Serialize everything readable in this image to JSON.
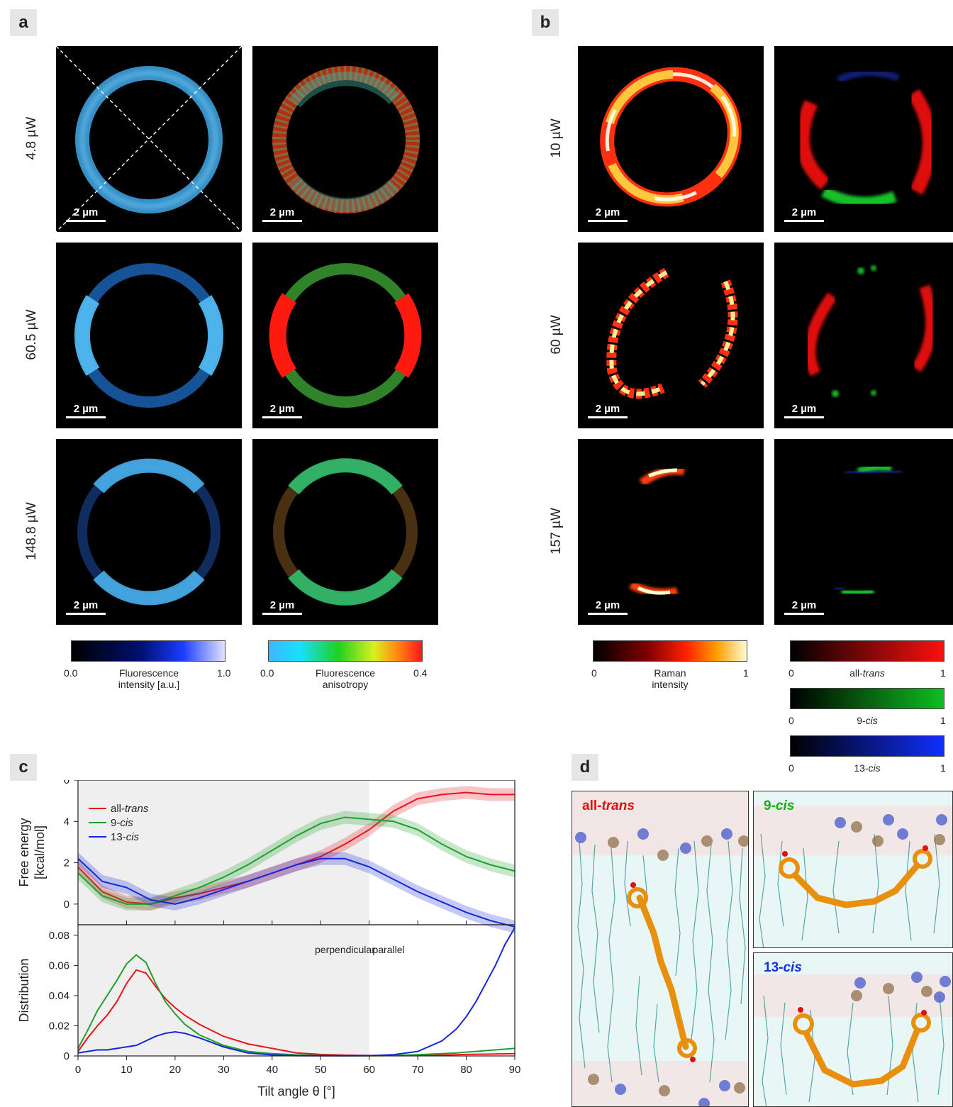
{
  "panels": {
    "a": "a",
    "b": "b",
    "c": "c",
    "d": "d"
  },
  "scale_bar": "2 µm",
  "panel_a": {
    "rows": [
      "4.8 µW",
      "60.5 µW",
      "148.8 µW"
    ],
    "colorbar_intensity": {
      "min": "0.0",
      "max": "1.0",
      "caption_line1": "Fluorescence",
      "caption_line2": "intensity [a.u.]"
    },
    "colorbar_anisotropy": {
      "min": "0.0",
      "max": "0.4",
      "caption_line1": "Fluorescence",
      "caption_line2": "anisotropy"
    }
  },
  "panel_b": {
    "rows": [
      "10 µW",
      "60 µW",
      "157 µW"
    ],
    "colorbar_raman": {
      "min": "0",
      "max": "1",
      "caption_line1": "Raman",
      "caption_line2": "intensity"
    },
    "colorbar_isomers": [
      {
        "min": "0",
        "max": "1",
        "prefix": "all-",
        "italic": "trans",
        "color": "#e01010"
      },
      {
        "min": "0",
        "max": "1",
        "prefix": "9-",
        "italic": "cis",
        "color": "#10b010"
      },
      {
        "min": "0",
        "max": "1",
        "prefix": "13-",
        "italic": "cis",
        "color": "#1030e0"
      }
    ]
  },
  "panel_d": {
    "labels": [
      {
        "prefix": "all-",
        "italic": "trans",
        "color": "#e01010"
      },
      {
        "prefix": "9-",
        "italic": "cis",
        "color": "#10b010"
      },
      {
        "prefix": "13-",
        "italic": "cis",
        "color": "#1030e0"
      }
    ]
  },
  "chart_data": [
    {
      "type": "line",
      "ylabel": "Free energy [kcal/mol]",
      "ylabel_line1": "Free energy",
      "ylabel_line2": "[kcal/mol]",
      "xlim": [
        0,
        90
      ],
      "ylim": [
        -1,
        6
      ],
      "yticks": [
        "6",
        "4",
        "2",
        "0"
      ],
      "shaded_region": [
        0,
        60
      ],
      "legend_placement": "top-left",
      "x": [
        0,
        5,
        10,
        15,
        20,
        25,
        30,
        35,
        40,
        45,
        50,
        55,
        60,
        65,
        70,
        75,
        80,
        85,
        90
      ],
      "series": [
        {
          "name": "all-trans",
          "prefix": "all-",
          "italic": "trans",
          "color": "#e8141b",
          "values": [
            1.8,
            0.6,
            0.1,
            0.0,
            0.3,
            0.5,
            0.8,
            1.1,
            1.5,
            1.9,
            2.3,
            2.9,
            3.6,
            4.5,
            5.1,
            5.3,
            5.4,
            5.3,
            5.3
          ]
        },
        {
          "name": "9-cis",
          "prefix": "9-",
          "italic": "cis",
          "color": "#1fa02a",
          "values": [
            1.5,
            0.4,
            0.0,
            0.0,
            0.4,
            0.8,
            1.3,
            1.9,
            2.6,
            3.3,
            3.9,
            4.2,
            4.1,
            4.0,
            3.6,
            2.9,
            2.3,
            1.9,
            1.6
          ]
        },
        {
          "name": "13-cis",
          "prefix": "13-",
          "italic": "cis",
          "color": "#1428d8",
          "values": [
            2.2,
            1.1,
            0.8,
            0.2,
            0.0,
            0.3,
            0.7,
            1.1,
            1.5,
            1.9,
            2.2,
            2.2,
            1.8,
            1.2,
            0.6,
            0.1,
            -0.4,
            -0.8,
            -1.1
          ]
        }
      ]
    },
    {
      "type": "line",
      "xlabel": "Tilt angle θ [°]",
      "ylabel": "Distribution",
      "xlim": [
        0,
        90
      ],
      "ylim": [
        0,
        0.087
      ],
      "xticks": [
        "0",
        "10",
        "20",
        "30",
        "40",
        "50",
        "60",
        "70",
        "80",
        "90"
      ],
      "yticks": [
        "0.08",
        "0.06",
        "0.04",
        "0.02",
        "0"
      ],
      "annotations": [
        "perpendicular",
        "parallel"
      ],
      "shaded_region": [
        0,
        60
      ],
      "x": [
        0,
        2,
        4,
        6,
        8,
        10,
        12,
        14,
        16,
        18,
        20,
        22,
        25,
        30,
        35,
        40,
        45,
        50,
        55,
        60,
        65,
        70,
        75,
        78,
        80,
        82,
        84,
        86,
        88,
        90
      ],
      "series": [
        {
          "name": "all-trans",
          "color": "#e8141b",
          "values": [
            0.003,
            0.012,
            0.02,
            0.027,
            0.036,
            0.048,
            0.057,
            0.055,
            0.046,
            0.038,
            0.032,
            0.027,
            0.021,
            0.013,
            0.008,
            0.005,
            0.002,
            0.001,
            0.0005,
            0.0003,
            0.0003,
            0.0004,
            0.0006,
            0.0008,
            0.001,
            0.0011,
            0.0012,
            0.0013,
            0.0014,
            0.0015
          ]
        },
        {
          "name": "9-cis",
          "color": "#1fa02a",
          "values": [
            0.005,
            0.017,
            0.03,
            0.04,
            0.05,
            0.061,
            0.067,
            0.062,
            0.048,
            0.036,
            0.028,
            0.021,
            0.014,
            0.007,
            0.003,
            0.0015,
            0.0007,
            0.0003,
            0.0001,
            0.0001,
            0.0003,
            0.0008,
            0.0015,
            0.002,
            0.0025,
            0.003,
            0.0035,
            0.004,
            0.0045,
            0.005
          ]
        },
        {
          "name": "13-cis",
          "color": "#1428d8",
          "values": [
            0.002,
            0.003,
            0.004,
            0.004,
            0.005,
            0.006,
            0.007,
            0.01,
            0.013,
            0.015,
            0.016,
            0.015,
            0.012,
            0.006,
            0.002,
            0.0007,
            0.0002,
            0.0001,
            0.0001,
            0.0002,
            0.0008,
            0.003,
            0.01,
            0.018,
            0.026,
            0.036,
            0.048,
            0.06,
            0.074,
            0.085
          ]
        }
      ]
    }
  ]
}
